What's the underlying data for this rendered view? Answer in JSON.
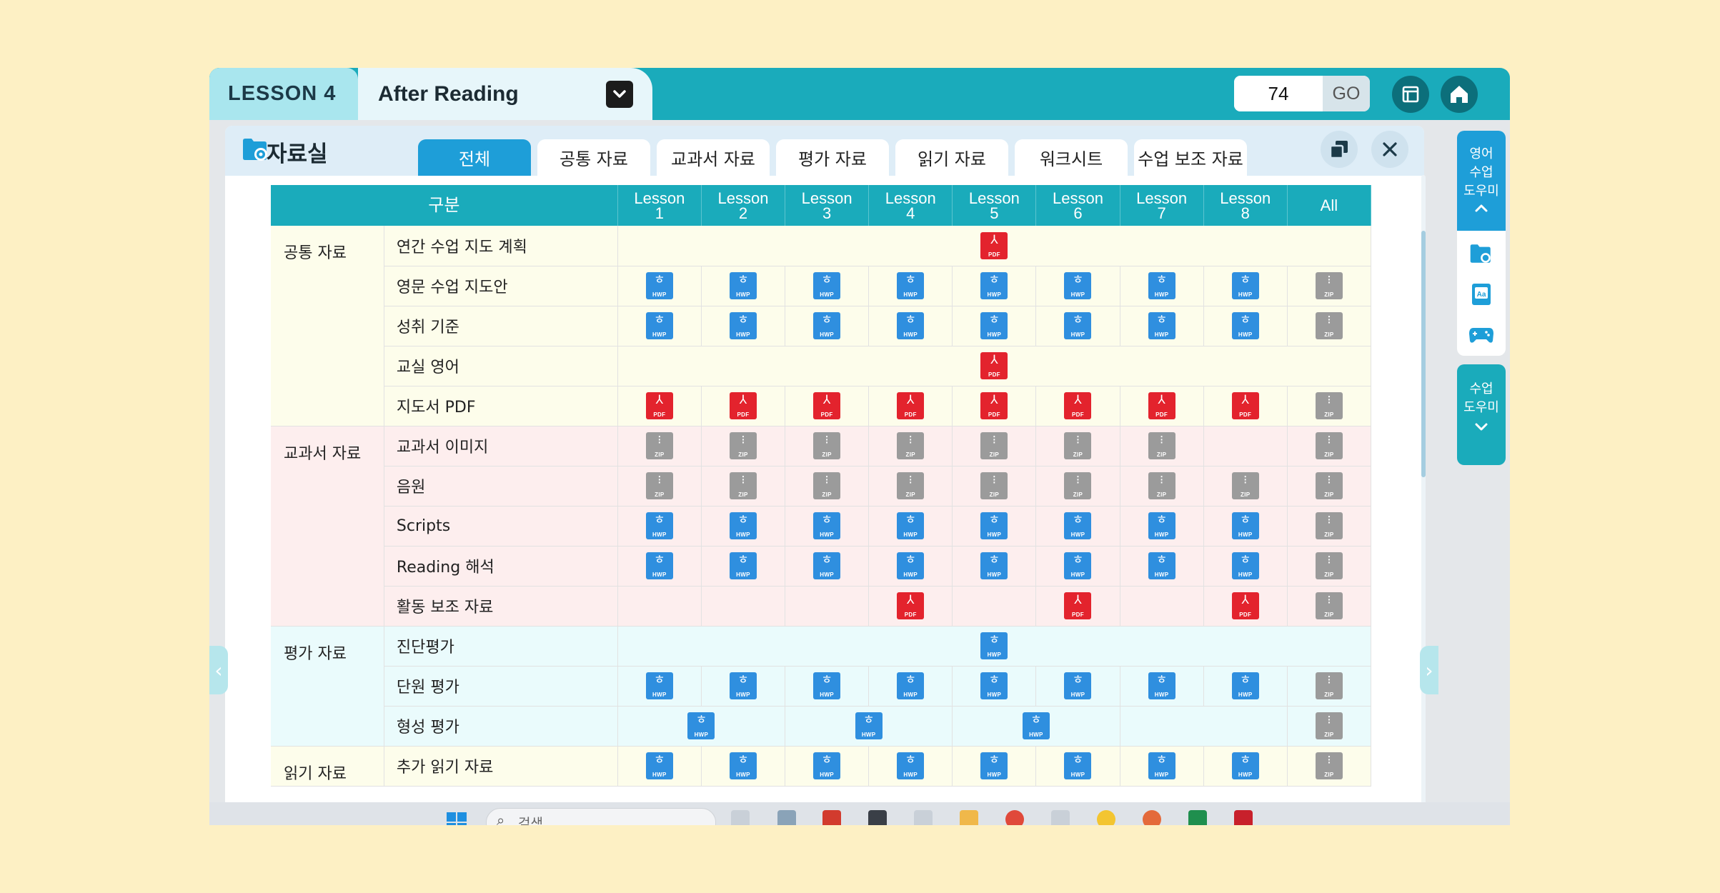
{
  "topbar": {
    "lesson_label": "LESSON 4",
    "section_label": "After Reading",
    "page_input_value": "74",
    "go_label": "GO"
  },
  "panel": {
    "title": "자료실",
    "tabs": [
      "전체",
      "공통 자료",
      "교과서 자료",
      "평가 자료",
      "읽기 자료",
      "워크시트",
      "수업 보조 자료"
    ],
    "active_tab": "전체"
  },
  "table": {
    "header_category": "구분",
    "lesson_headers": [
      {
        "line1": "Lesson",
        "line2": "1"
      },
      {
        "line1": "Lesson",
        "line2": "2"
      },
      {
        "line1": "Lesson",
        "line2": "3"
      },
      {
        "line1": "Lesson",
        "line2": "4"
      },
      {
        "line1": "Lesson",
        "line2": "5"
      },
      {
        "line1": "Lesson",
        "line2": "6"
      },
      {
        "line1": "Lesson",
        "line2": "7"
      },
      {
        "line1": "Lesson",
        "line2": "8"
      }
    ],
    "all_header": "All",
    "groups": [
      {
        "category": "공통 자료",
        "color": "#fdfdeb",
        "rows": [
          {
            "label": "연간 수업 지도 계획",
            "span": "pdf",
            "cells": [],
            "all": ""
          },
          {
            "label": "영문 수업 지도안",
            "cells": [
              "HWP",
              "HWP",
              "HWP",
              "HWP",
              "HWP",
              "HWP",
              "HWP",
              "HWP"
            ],
            "all": "ZIP"
          },
          {
            "label": "성취 기준",
            "cells": [
              "HWP",
              "HWP",
              "HWP",
              "HWP",
              "HWP",
              "HWP",
              "HWP",
              "HWP"
            ],
            "all": "ZIP"
          },
          {
            "label": "교실 영어",
            "span": "pdf",
            "cells": [],
            "all": ""
          },
          {
            "label": "지도서 PDF",
            "cells": [
              "PDF",
              "PDF",
              "PDF",
              "PDF",
              "PDF",
              "PDF",
              "PDF",
              "PDF"
            ],
            "all": "ZIP"
          }
        ]
      },
      {
        "category": "교과서 자료",
        "color": "#fdeeee",
        "rows": [
          {
            "label": "교과서 이미지",
            "cells": [
              "ZIP",
              "ZIP",
              "ZIP",
              "ZIP",
              "ZIP",
              "ZIP",
              "ZIP",
              ""
            ],
            "all": "ZIP"
          },
          {
            "label": "음원",
            "cells": [
              "ZIP",
              "ZIP",
              "ZIP",
              "ZIP",
              "ZIP",
              "ZIP",
              "ZIP",
              "ZIP"
            ],
            "all": "ZIP"
          },
          {
            "label": "Scripts",
            "cells": [
              "HWP",
              "HWP",
              "HWP",
              "HWP",
              "HWP",
              "HWP",
              "HWP",
              "HWP"
            ],
            "all": "ZIP"
          },
          {
            "label": "Reading 해석",
            "cells": [
              "HWP",
              "HWP",
              "HWP",
              "HWP",
              "HWP",
              "HWP",
              "HWP",
              "HWP"
            ],
            "all": "ZIP"
          },
          {
            "label": "활동 보조 자료",
            "cells": [
              "",
              "",
              "",
              "PDF",
              "",
              "PDF",
              "",
              "PDF"
            ],
            "all": "ZIP"
          }
        ]
      },
      {
        "category": "평가 자료",
        "color": "#eafbfc",
        "rows": [
          {
            "label": "진단평가",
            "span": "hwp",
            "cells": [],
            "all": ""
          },
          {
            "label": "단원 평가",
            "cells": [
              "HWP",
              "HWP",
              "HWP",
              "HWP",
              "HWP",
              "HWP",
              "HWP",
              "HWP"
            ],
            "all": "ZIP"
          },
          {
            "label": "형성 평가",
            "pairs": [
              "HWP",
              "HWP",
              "HWP",
              ""
            ],
            "all": "ZIP"
          }
        ]
      },
      {
        "category": "읽기 자료",
        "color": "#fdfdeb",
        "rows": [
          {
            "label": "추가 읽기 자료",
            "cells": [
              "HWP",
              "HWP",
              "HWP",
              "HWP",
              "HWP",
              "HWP",
              "HWP",
              "HWP"
            ],
            "all": "ZIP"
          }
        ]
      }
    ]
  },
  "right_rail": {
    "english_helper": [
      "영어",
      "수업",
      "도우미"
    ],
    "class_helper": [
      "수업",
      "도우미"
    ]
  },
  "taskbar": {
    "search_placeholder": "검색"
  },
  "colors": {
    "teal": "#1aabbb",
    "blue": "#1e9ed8",
    "hwp": "#2f8fdf",
    "pdf": "#e3232d",
    "zip": "#9b9b9b",
    "background": "#fdf0c4"
  }
}
